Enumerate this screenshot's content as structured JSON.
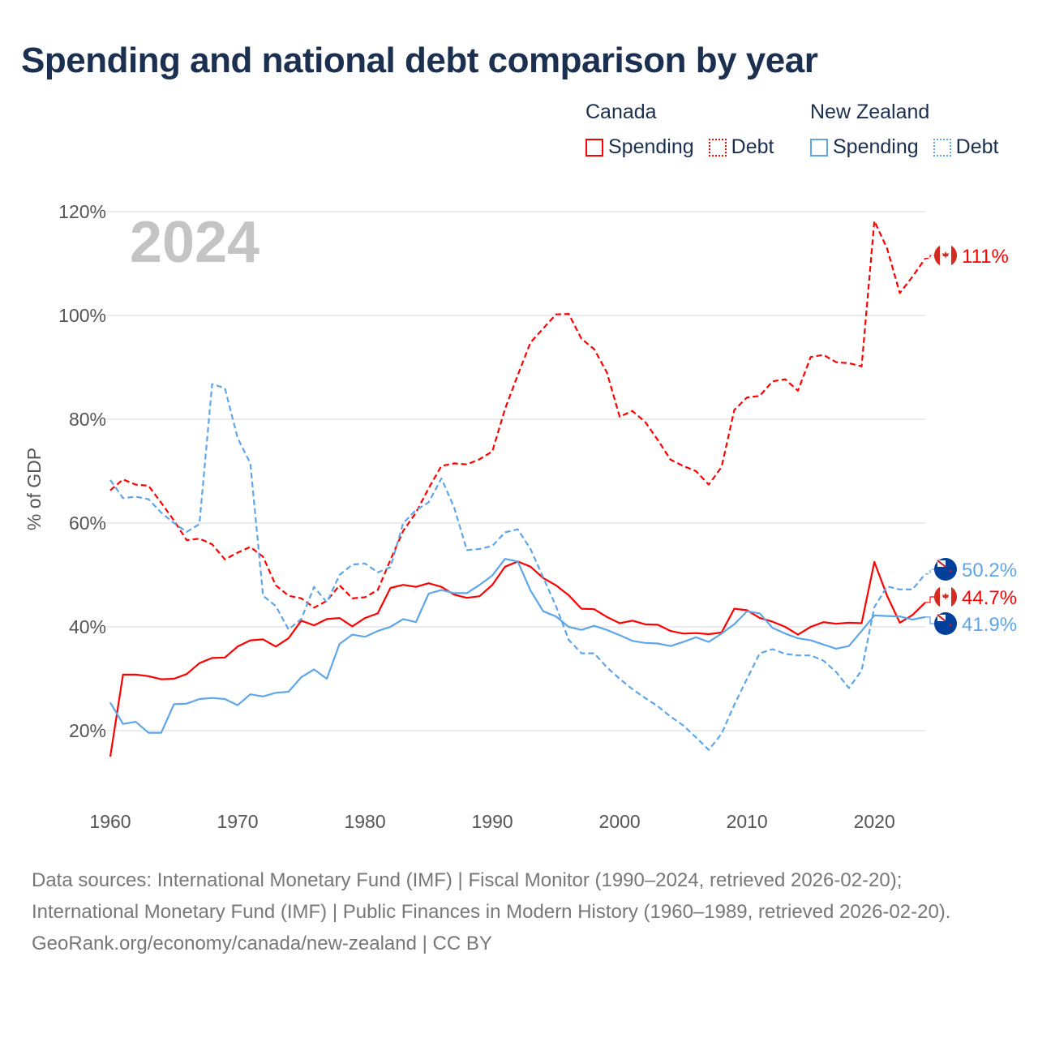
{
  "title": "Spending and national debt comparison by year",
  "legend": {
    "groups": [
      {
        "name": "Canada",
        "spending_label": "Spending",
        "debt_label": "Debt",
        "color": "#ff0000"
      },
      {
        "name": "New Zealand",
        "spending_label": "Spending",
        "debt_label": "Debt",
        "color": "#5ea6ea"
      }
    ]
  },
  "chart_data": {
    "type": "line",
    "title": "Spending and national debt comparison by year",
    "ylabel": "% of GDP",
    "xlabel": "",
    "year_watermark": "2024",
    "ylim": [
      5,
      125
    ],
    "xlim": [
      1960,
      2024
    ],
    "yticks": [
      20,
      40,
      60,
      80,
      100,
      120
    ],
    "ytick_labels": [
      "20%",
      "40%",
      "60%",
      "80%",
      "100%",
      "120%"
    ],
    "xticks": [
      1960,
      1970,
      1980,
      1990,
      2000,
      2010,
      2020
    ],
    "xtick_labels": [
      "1960",
      "1970",
      "1980",
      "1990",
      "2000",
      "2010",
      "2020"
    ],
    "grid": true,
    "legend_position": "top-right",
    "x_start": 1960,
    "series": [
      {
        "name": "Canada Spending",
        "country": "Canada",
        "style": "solid",
        "color": "#ff0000",
        "end_label": "44.7%",
        "values": [
          15.0,
          30.8,
          30.8,
          30.5,
          29.9,
          30.0,
          30.9,
          33.0,
          34.0,
          34.1,
          36.2,
          37.4,
          37.6,
          36.2,
          37.8,
          41.2,
          40.3,
          41.5,
          41.7,
          40.1,
          41.7,
          42.6,
          47.5,
          48.1,
          47.7,
          48.4,
          47.7,
          46.2,
          45.6,
          45.9,
          48.1,
          51.6,
          52.6,
          51.6,
          49.4,
          48.0,
          46.1,
          43.5,
          43.4,
          41.9,
          40.7,
          41.2,
          40.5,
          40.4,
          39.2,
          38.7,
          38.8,
          38.6,
          38.9,
          43.5,
          43.2,
          41.7,
          41.0,
          40.0,
          38.5,
          40.0,
          40.9,
          40.6,
          40.8,
          40.7,
          52.5,
          46.0,
          40.8,
          42.3,
          44.7
        ]
      },
      {
        "name": "Canada Debt",
        "country": "Canada",
        "style": "dashed",
        "color": "#ff0000",
        "end_label": "111%",
        "values": [
          66.3,
          68.4,
          67.4,
          67.2,
          63.9,
          60.5,
          56.7,
          57.0,
          55.9,
          53.0,
          54.3,
          55.4,
          53.5,
          48.0,
          46.0,
          45.5,
          43.7,
          45.0,
          48.0,
          45.5,
          45.7,
          47.1,
          52.9,
          58.5,
          62.0,
          66.7,
          71.0,
          71.5,
          71.3,
          72.3,
          73.8,
          82.0,
          88.5,
          94.8,
          97.5,
          100.2,
          100.3,
          95.5,
          93.5,
          89.0,
          80.5,
          81.6,
          79.5,
          76.0,
          72.2,
          71.0,
          70.0,
          67.4,
          70.8,
          81.8,
          84.2,
          84.5,
          87.3,
          87.7,
          85.5,
          92.0,
          92.4,
          91.0,
          90.8,
          90.2,
          118.2,
          112.9,
          104.3,
          107.5,
          111.0
        ]
      },
      {
        "name": "New Zealand Spending",
        "country": "New Zealand",
        "style": "solid",
        "color": "#5ea6ea",
        "end_label": "41.9%",
        "values": [
          25.4,
          21.3,
          21.7,
          19.6,
          19.6,
          25.1,
          25.2,
          26.1,
          26.3,
          26.1,
          24.9,
          27.0,
          26.6,
          27.3,
          27.5,
          30.3,
          31.8,
          30.0,
          36.7,
          38.5,
          38.1,
          39.2,
          40.0,
          41.5,
          40.9,
          46.4,
          47.1,
          46.5,
          46.5,
          48.1,
          49.9,
          53.1,
          52.6,
          47.0,
          43.0,
          42.0,
          40.0,
          39.4,
          40.2,
          39.4,
          38.4,
          37.3,
          36.9,
          36.8,
          36.3,
          37.1,
          38.0,
          37.1,
          38.7,
          40.5,
          43.0,
          42.6,
          39.8,
          38.7,
          37.8,
          37.4,
          36.6,
          35.8,
          36.3,
          39.2,
          42.2,
          42.1,
          42.0,
          41.4,
          41.9
        ]
      },
      {
        "name": "New Zealand Debt",
        "country": "New Zealand",
        "style": "dashed",
        "color": "#5ea6ea",
        "end_label": "50.2%",
        "values": [
          68.3,
          64.8,
          65.1,
          64.6,
          62.0,
          60.0,
          58.3,
          59.8,
          86.8,
          86.0,
          76.4,
          71.5,
          46.0,
          44.0,
          39.5,
          41.5,
          47.7,
          44.7,
          50.0,
          52.0,
          52.2,
          50.5,
          51.5,
          60.0,
          62.5,
          64.0,
          68.6,
          63.0,
          54.8,
          55.0,
          55.6,
          58.2,
          58.8,
          55.0,
          49.5,
          44.0,
          37.5,
          34.9,
          34.9,
          32.2,
          30.0,
          28.0,
          26.3,
          24.7,
          22.7,
          21.0,
          18.7,
          16.3,
          19.4,
          25.0,
          30.0,
          34.9,
          35.7,
          34.8,
          34.5,
          34.5,
          33.5,
          31.3,
          28.2,
          31.6,
          43.8,
          47.8,
          47.2,
          47.2,
          50.2
        ]
      }
    ]
  },
  "footer": {
    "sources": "Data sources: International Monetary Fund (IMF) | Fiscal Monitor (1990–2024, retrieved 2026-02-20); International Monetary Fund (IMF) | Public Finances in Modern History (1960–1989, retrieved 2026-02-20).",
    "attribution": "GeoRank.org/economy/canada/new-zealand | CC BY"
  }
}
